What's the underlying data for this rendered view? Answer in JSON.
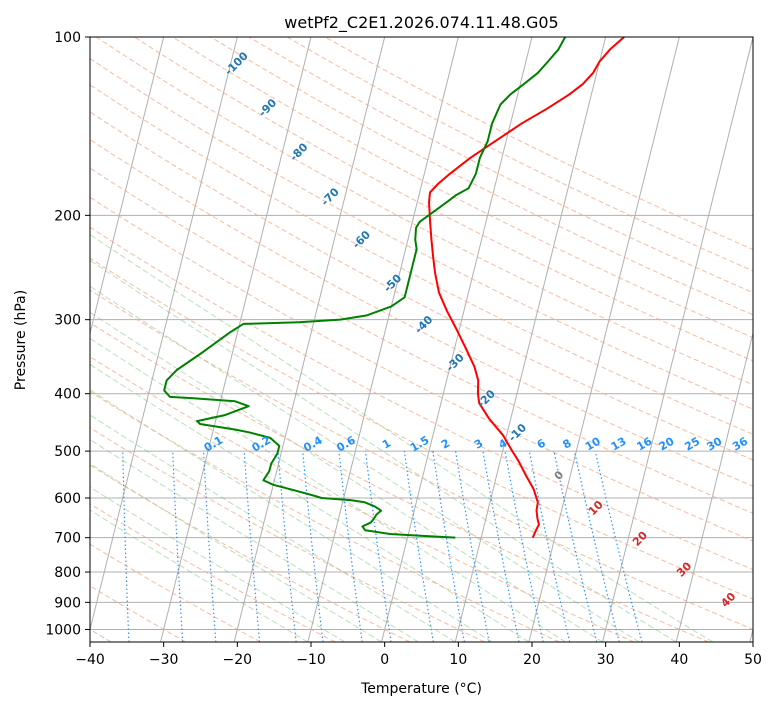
{
  "chart_data": {
    "type": "skew-t",
    "title": "wetPf2_C2E1.2026.074.11.48.G05",
    "xlabel": "Temperature (°C)",
    "ylabel": "Pressure (hPa)",
    "xlim": [
      -40,
      50
    ],
    "ylim": [
      1050,
      100
    ],
    "x_ticks": [
      -40,
      -30,
      -20,
      -10,
      0,
      10,
      20,
      30,
      40,
      50
    ],
    "y_ticks": [
      100,
      200,
      300,
      400,
      500,
      600,
      700,
      800,
      900,
      1000
    ],
    "x_tick_labels": [
      "−40",
      "−30",
      "−20",
      "−10",
      "0",
      "10",
      "20",
      "30",
      "40",
      "50"
    ],
    "y_tick_labels": [
      "100",
      "200",
      "300",
      "400",
      "500",
      "600",
      "700",
      "800",
      "900",
      "1000"
    ],
    "skew_degrees_per_log10p": 20,
    "dry_adiabat_labels": [
      {
        "text": "-100",
        "p": 112
      },
      {
        "text": "-90",
        "p": 133
      },
      {
        "text": "-80",
        "p": 158
      },
      {
        "text": "-70",
        "p": 188
      },
      {
        "text": "-60",
        "p": 222
      },
      {
        "text": "-50",
        "p": 263
      },
      {
        "text": "-40",
        "p": 309
      },
      {
        "text": "-30",
        "p": 358
      },
      {
        "text": "-20",
        "p": 412
      },
      {
        "text": "-10",
        "p": 470
      }
    ],
    "mixing_ratio_labels": [
      {
        "text": "0.1",
        "x": -23.0
      },
      {
        "text": "0.2",
        "x": -16.5
      },
      {
        "text": "0.4",
        "x": -9.5
      },
      {
        "text": "0.6",
        "x": -5.0
      },
      {
        "text": "1",
        "x": 0.5
      },
      {
        "text": "1.5",
        "x": 5.0
      },
      {
        "text": "2",
        "x": 8.5
      },
      {
        "text": "3",
        "x": 13.0
      },
      {
        "text": "4",
        "x": 16.3
      },
      {
        "text": "6",
        "x": 21.5
      },
      {
        "text": "8",
        "x": 25.0
      },
      {
        "text": "10",
        "x": 28.5
      },
      {
        "text": "13",
        "x": 32.0
      },
      {
        "text": "16",
        "x": 35.5
      },
      {
        "text": "20",
        "x": 38.5
      },
      {
        "text": "25",
        "x": 42.0
      },
      {
        "text": "30",
        "x": 45.0
      },
      {
        "text": "36",
        "x": 48.5
      }
    ],
    "moist_adiabat_labels": [
      {
        "text": "0",
        "x": 24.0,
        "p": 555
      },
      {
        "text": "10",
        "x": 29.0,
        "p": 630
      },
      {
        "text": "20",
        "x": 35.0,
        "p": 710
      },
      {
        "text": "30",
        "x": 41.0,
        "p": 800
      },
      {
        "text": "40",
        "x": 47.0,
        "p": 900
      }
    ],
    "series": [
      {
        "name": "Temperature",
        "color": "#ff0000",
        "points": [
          [
            17.0,
            700
          ],
          [
            17.2,
            680
          ],
          [
            17.4,
            665
          ],
          [
            17.0,
            650
          ],
          [
            16.6,
            630
          ],
          [
            16.5,
            610
          ],
          [
            15.5,
            580
          ],
          [
            14.0,
            550
          ],
          [
            12.5,
            520
          ],
          [
            11.3,
            500
          ],
          [
            9.5,
            470
          ],
          [
            7.0,
            440
          ],
          [
            5.2,
            415
          ],
          [
            4.7,
            400
          ],
          [
            4.3,
            380
          ],
          [
            3.3,
            360
          ],
          [
            1.5,
            335
          ],
          [
            -0.5,
            310
          ],
          [
            -2.3,
            290
          ],
          [
            -4.0,
            270
          ],
          [
            -5.2,
            250
          ],
          [
            -6.0,
            235
          ],
          [
            -6.8,
            220
          ],
          [
            -7.6,
            205
          ],
          [
            -8.4,
            190
          ],
          [
            -8.6,
            183
          ],
          [
            -7.8,
            177
          ],
          [
            -6.5,
            170
          ],
          [
            -4.3,
            160
          ],
          [
            -1.5,
            150
          ],
          [
            1.5,
            140
          ],
          [
            4.5,
            132
          ],
          [
            7.0,
            125
          ],
          [
            8.5,
            120
          ],
          [
            9.5,
            115
          ],
          [
            10.0,
            110
          ],
          [
            11.0,
            105
          ],
          [
            12.5,
            100
          ]
        ]
      },
      {
        "name": "Dewpoint",
        "color": "#008000",
        "points": [
          [
            6.5,
            700
          ],
          [
            2.0,
            695
          ],
          [
            -2.5,
            690
          ],
          [
            -6.0,
            680
          ],
          [
            -6.5,
            670
          ],
          [
            -5.5,
            660
          ],
          [
            -5.2,
            650
          ],
          [
            -5.0,
            640
          ],
          [
            -4.5,
            630
          ],
          [
            -5.5,
            620
          ],
          [
            -7.0,
            610
          ],
          [
            -9.0,
            605
          ],
          [
            -13.0,
            600
          ],
          [
            -14.0,
            595
          ],
          [
            -17.5,
            580
          ],
          [
            -20.0,
            570
          ],
          [
            -21.5,
            560
          ],
          [
            -21.0,
            540
          ],
          [
            -21.0,
            525
          ],
          [
            -20.5,
            505
          ],
          [
            -20.5,
            490
          ],
          [
            -22.0,
            475
          ],
          [
            -25.0,
            465
          ],
          [
            -27.0,
            460
          ],
          [
            -32.0,
            450
          ],
          [
            -32.5,
            445
          ],
          [
            -29.0,
            435
          ],
          [
            -26.0,
            420
          ],
          [
            -28.0,
            412
          ],
          [
            -34.0,
            407
          ],
          [
            -37.0,
            405
          ],
          [
            -38.0,
            395
          ],
          [
            -38.0,
            380
          ],
          [
            -37.0,
            365
          ],
          [
            -34.0,
            340
          ],
          [
            -31.0,
            315
          ],
          [
            -29.5,
            305
          ],
          [
            -22.0,
            303
          ],
          [
            -16.5,
            300
          ],
          [
            -13.0,
            295
          ],
          [
            -10.0,
            285
          ],
          [
            -8.5,
            275
          ],
          [
            -8.5,
            260
          ],
          [
            -8.5,
            245
          ],
          [
            -8.5,
            235
          ],
          [
            -8.5,
            228
          ],
          [
            -9.0,
            220
          ],
          [
            -9.3,
            210
          ],
          [
            -9.0,
            205
          ],
          [
            -8.0,
            200
          ],
          [
            -6.0,
            190
          ],
          [
            -5.0,
            185
          ],
          [
            -3.5,
            180
          ],
          [
            -3.0,
            170
          ],
          [
            -3.0,
            160
          ],
          [
            -2.5,
            150
          ],
          [
            -2.5,
            140
          ],
          [
            -2.0,
            130
          ],
          [
            -1.0,
            125
          ],
          [
            0.5,
            120
          ],
          [
            2.0,
            115
          ],
          [
            3.0,
            110
          ],
          [
            4.0,
            105
          ],
          [
            4.5,
            100
          ]
        ]
      }
    ]
  }
}
